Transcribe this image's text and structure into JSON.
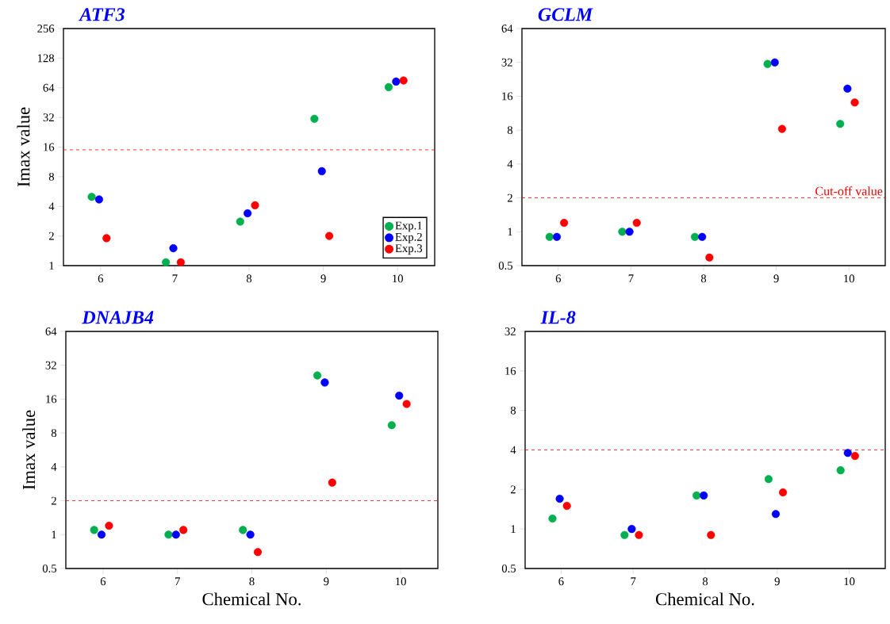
{
  "chart_data": [
    {
      "type": "scatter",
      "title": "ATF3",
      "ylabel": "Imax value",
      "marker": "circle",
      "log": "y",
      "legend": "bottom right",
      "xlim": [
        5.5,
        10.5
      ],
      "xticks": [
        6,
        7,
        8,
        9,
        10
      ],
      "ylim": [
        1,
        256
      ],
      "yticks": [
        1,
        2,
        4,
        8,
        16,
        32,
        64,
        128,
        256
      ],
      "series": [
        {
          "name": "Exp.1",
          "color": "#00b050",
          "x": [
            5.88,
            6.88,
            7.88,
            8.88,
            9.88
          ],
          "values": [
            5.0,
            1.08,
            2.8,
            31,
            65
          ]
        },
        {
          "name": "Exp.2",
          "color": "#0000ff",
          "x": [
            5.98,
            6.98,
            7.98,
            8.98,
            9.98
          ],
          "values": [
            4.7,
            1.5,
            3.4,
            9.1,
            74
          ]
        },
        {
          "name": "Exp.3",
          "color": "#ff0000",
          "x": [
            6.08,
            7.08,
            8.08,
            9.08,
            10.08
          ],
          "values": [
            1.9,
            1.08,
            4.1,
            2.0,
            76
          ]
        }
      ],
      "ref_lines": [
        {
          "axis": "y",
          "value": 15,
          "color": "#ff0000",
          "line_style": "dashed"
        }
      ]
    },
    {
      "type": "scatter",
      "title": "GCLM",
      "marker": "circle",
      "log": "y",
      "xlim": [
        5.5,
        10.5
      ],
      "xticks": [
        6,
        7,
        8,
        9,
        10
      ],
      "ylim": [
        0.5,
        64
      ],
      "yticks": [
        0.5,
        1,
        2,
        4,
        8,
        16,
        32,
        64
      ],
      "series": [
        {
          "color": "#00b050",
          "x": [
            5.88,
            6.88,
            7.88,
            8.88,
            9.88
          ],
          "values": [
            0.9,
            1.0,
            0.9,
            31,
            9.1
          ]
        },
        {
          "color": "#0000ff",
          "x": [
            5.98,
            6.98,
            7.98,
            8.98,
            9.98
          ],
          "values": [
            0.9,
            1.0,
            0.9,
            32,
            18.7
          ]
        },
        {
          "color": "#ff0000",
          "x": [
            6.08,
            7.08,
            8.08,
            9.08,
            10.08
          ],
          "values": [
            1.2,
            1.2,
            0.59,
            8.2,
            14.1
          ]
        }
      ],
      "ref_lines": [
        {
          "axis": "y",
          "value": 2,
          "label": "Cut-off value",
          "color": "#ff0000",
          "line_style": "dashed"
        }
      ]
    },
    {
      "type": "scatter",
      "title": "DNAJB4",
      "ylabel": "Imax value",
      "xlabel": "Chemical No.",
      "marker": "circle",
      "log": "y",
      "xlim": [
        5.5,
        10.5
      ],
      "xticks": [
        6,
        7,
        8,
        9,
        10
      ],
      "ylim": [
        0.5,
        64
      ],
      "yticks": [
        0.5,
        1,
        2,
        4,
        8,
        16,
        32,
        64
      ],
      "series": [
        {
          "color": "#00b050",
          "x": [
            5.88,
            6.88,
            7.88,
            8.88,
            9.88
          ],
          "values": [
            1.1,
            1.0,
            1.1,
            26,
            9.4
          ]
        },
        {
          "color": "#0000ff",
          "x": [
            5.98,
            6.98,
            7.98,
            8.98,
            9.98
          ],
          "values": [
            1.0,
            1.0,
            1.0,
            22.5,
            17.2
          ]
        },
        {
          "color": "#ff0000",
          "x": [
            6.08,
            7.08,
            8.08,
            9.08,
            10.08
          ],
          "values": [
            1.2,
            1.1,
            0.7,
            2.9,
            14.5
          ]
        }
      ],
      "ref_lines": [
        {
          "axis": "y",
          "value": 2,
          "color": "#ff0000",
          "line_style": "dashed"
        }
      ]
    },
    {
      "type": "scatter",
      "title": "IL-8",
      "xlabel": "Chemical No.",
      "marker": "circle",
      "log": "y",
      "xlim": [
        5.5,
        10.5
      ],
      "xticks": [
        6,
        7,
        8,
        9,
        10
      ],
      "ylim": [
        0.5,
        32
      ],
      "yticks": [
        0.5,
        1,
        2,
        4,
        8,
        16,
        32
      ],
      "series": [
        {
          "color": "#00b050",
          "x": [
            5.88,
            6.88,
            7.88,
            8.88,
            9.88
          ],
          "values": [
            1.2,
            0.9,
            1.8,
            2.4,
            2.8
          ]
        },
        {
          "color": "#0000ff",
          "x": [
            5.98,
            6.98,
            7.98,
            8.98,
            9.98
          ],
          "values": [
            1.7,
            1.0,
            1.8,
            1.3,
            3.8
          ]
        },
        {
          "color": "#ff0000",
          "x": [
            6.08,
            7.08,
            8.08,
            9.08,
            10.08
          ],
          "values": [
            1.5,
            0.9,
            0.9,
            1.9,
            3.6
          ]
        }
      ],
      "ref_lines": [
        {
          "axis": "y",
          "value": 4,
          "color": "#ff0000",
          "line_style": "dashed"
        }
      ]
    }
  ]
}
